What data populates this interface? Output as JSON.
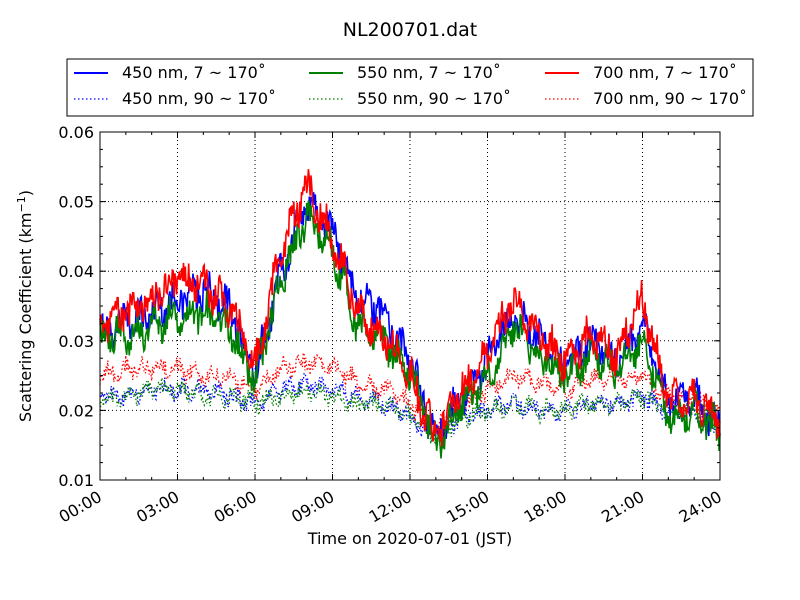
{
  "chart_data": {
    "type": "line",
    "title": "NL200701.dat",
    "xlabel": "Time on 2020-07-01 (JST)",
    "ylabel": "Scattering Coefficient (km",
    "ylabel_sup": "−1",
    "ylabel_close": ")",
    "ylim": [
      0.01,
      0.06
    ],
    "xlim": [
      "2020-07-01 00:00",
      "2020-07-02 00:00"
    ],
    "x_ticks": [
      "00:00",
      "03:00",
      "06:00",
      "09:00",
      "12:00",
      "15:00",
      "18:00",
      "21:00",
      "24:00"
    ],
    "y_ticks": [
      "0.01",
      "0.02",
      "0.03",
      "0.04",
      "0.05",
      "0.06"
    ],
    "grid": true,
    "legend_position": "top",
    "colors": {
      "blue": "#0000ff",
      "green": "#008000",
      "red": "#ff0000"
    },
    "series": [
      {
        "name": "450 nm, 7 ~ 170˚",
        "color": "#0000ff",
        "style": "solid",
        "x": [
          "00:00",
          "01:00",
          "02:00",
          "03:00",
          "04:00",
          "05:00",
          "06:00",
          "07:00",
          "08:00",
          "09:00",
          "10:00",
          "11:00",
          "12:00",
          "13:00",
          "14:00",
          "15:00",
          "16:00",
          "17:00",
          "18:00",
          "19:00",
          "20:00",
          "21:00",
          "22:00",
          "23:00",
          "24:00"
        ],
        "values": [
          0.031,
          0.033,
          0.034,
          0.036,
          0.037,
          0.035,
          0.025,
          0.04,
          0.05,
          0.046,
          0.036,
          0.034,
          0.027,
          0.016,
          0.022,
          0.027,
          0.034,
          0.03,
          0.026,
          0.03,
          0.027,
          0.032,
          0.021,
          0.022,
          0.017
        ]
      },
      {
        "name": "550 nm, 7 ~ 170˚",
        "color": "#008000",
        "style": "solid",
        "x": [
          "00:00",
          "01:00",
          "02:00",
          "03:00",
          "04:00",
          "05:00",
          "06:00",
          "07:00",
          "08:00",
          "09:00",
          "10:00",
          "11:00",
          "12:00",
          "13:00",
          "14:00",
          "15:00",
          "16:00",
          "17:00",
          "18:00",
          "19:00",
          "20:00",
          "21:00",
          "22:00",
          "23:00",
          "24:00"
        ],
        "values": [
          0.03,
          0.031,
          0.032,
          0.034,
          0.034,
          0.032,
          0.024,
          0.039,
          0.048,
          0.043,
          0.032,
          0.03,
          0.025,
          0.015,
          0.021,
          0.025,
          0.032,
          0.028,
          0.025,
          0.028,
          0.026,
          0.03,
          0.019,
          0.02,
          0.017
        ]
      },
      {
        "name": "700 nm, 7 ~ 170˚",
        "color": "#ff0000",
        "style": "solid",
        "x": [
          "00:00",
          "01:00",
          "02:00",
          "03:00",
          "04:00",
          "05:00",
          "06:00",
          "07:00",
          "08:00",
          "09:00",
          "10:00",
          "11:00",
          "12:00",
          "13:00",
          "14:00",
          "15:00",
          "16:00",
          "17:00",
          "18:00",
          "19:00",
          "20:00",
          "21:00",
          "22:00",
          "23:00",
          "24:00"
        ],
        "values": [
          0.032,
          0.034,
          0.036,
          0.039,
          0.038,
          0.035,
          0.026,
          0.043,
          0.052,
          0.045,
          0.034,
          0.031,
          0.025,
          0.016,
          0.023,
          0.028,
          0.036,
          0.031,
          0.027,
          0.031,
          0.028,
          0.036,
          0.021,
          0.022,
          0.018
        ]
      },
      {
        "name": "450 nm, 90 ~ 170˚",
        "color": "#0000ff",
        "style": "dotted",
        "x": [
          "00:00",
          "01:00",
          "02:00",
          "03:00",
          "04:00",
          "05:00",
          "06:00",
          "07:00",
          "08:00",
          "09:00",
          "10:00",
          "11:00",
          "12:00",
          "13:00",
          "14:00",
          "15:00",
          "16:00",
          "17:00",
          "18:00",
          "19:00",
          "20:00",
          "21:00",
          "22:00",
          "23:00",
          "24:00"
        ],
        "values": [
          0.022,
          0.022,
          0.023,
          0.023,
          0.023,
          0.022,
          0.021,
          0.023,
          0.024,
          0.023,
          0.022,
          0.021,
          0.019,
          0.016,
          0.019,
          0.02,
          0.021,
          0.02,
          0.02,
          0.021,
          0.021,
          0.022,
          0.02,
          0.02,
          0.018
        ]
      },
      {
        "name": "550 nm, 90 ~ 170˚",
        "color": "#008000",
        "style": "dotted",
        "x": [
          "00:00",
          "01:00",
          "02:00",
          "03:00",
          "04:00",
          "05:00",
          "06:00",
          "07:00",
          "08:00",
          "09:00",
          "10:00",
          "11:00",
          "12:00",
          "13:00",
          "14:00",
          "15:00",
          "16:00",
          "17:00",
          "18:00",
          "19:00",
          "20:00",
          "21:00",
          "22:00",
          "23:00",
          "24:00"
        ],
        "values": [
          0.021,
          0.022,
          0.023,
          0.023,
          0.022,
          0.022,
          0.021,
          0.022,
          0.023,
          0.022,
          0.021,
          0.021,
          0.019,
          0.016,
          0.019,
          0.02,
          0.021,
          0.02,
          0.02,
          0.021,
          0.021,
          0.022,
          0.02,
          0.02,
          0.018
        ]
      },
      {
        "name": "700 nm, 90 ~ 170˚",
        "color": "#ff0000",
        "style": "dotted",
        "x": [
          "00:00",
          "01:00",
          "02:00",
          "03:00",
          "04:00",
          "05:00",
          "06:00",
          "07:00",
          "08:00",
          "09:00",
          "10:00",
          "11:00",
          "12:00",
          "13:00",
          "14:00",
          "15:00",
          "16:00",
          "17:00",
          "18:00",
          "19:00",
          "20:00",
          "21:00",
          "22:00",
          "23:00",
          "24:00"
        ],
        "values": [
          0.025,
          0.026,
          0.026,
          0.026,
          0.025,
          0.025,
          0.023,
          0.026,
          0.027,
          0.026,
          0.024,
          0.023,
          0.021,
          0.017,
          0.021,
          0.023,
          0.025,
          0.024,
          0.023,
          0.025,
          0.024,
          0.025,
          0.022,
          0.022,
          0.02
        ]
      }
    ]
  }
}
